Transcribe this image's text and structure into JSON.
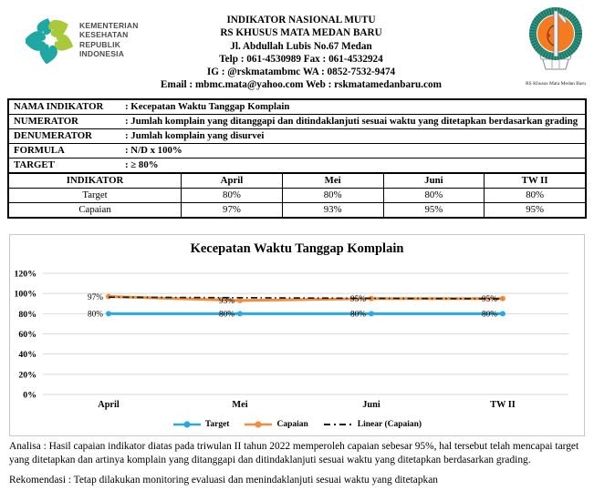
{
  "header": {
    "ministry_label_lines": [
      "KEMENTERIAN",
      "KESEHATAN",
      "REPUBLIK",
      "INDONESIA"
    ],
    "title_lines": [
      "INDIKATOR NASIONAL MUTU",
      "RS KHUSUS MATA MEDAN BARU",
      "Jl. Abdullah Lubis No.67 Medan",
      "Telp : 061-4530989  Fax : 061-4532924",
      "IG : @rskmatambmc  WA : 0852-7532-9474",
      "Email : mbmc.mata@yahoo.com  Web : rskmatamedanbaru.com"
    ],
    "hospital_logo_caption": "RS Khusus Mata  Medan Baru"
  },
  "info_table": {
    "rows": [
      {
        "label": "NAMA INDIKATOR",
        "value": ": Kecepatan Waktu Tanggap Komplain"
      },
      {
        "label": "NUMERATOR",
        "value": ": Jumlah komplain yang ditanggapi dan ditindaklanjuti sesuai waktu yang ditetapkan berdasarkan grading"
      },
      {
        "label": "DENUMERATOR",
        "value": ": Jumlah komplain yang disurvei"
      },
      {
        "label": "FORMULA",
        "value": ": N/D x 100%"
      },
      {
        "label": "TARGET",
        "value": ": ≥ 80%"
      }
    ]
  },
  "data_table": {
    "header": [
      "INDIKATOR",
      "April",
      "Mei",
      "Juni",
      "TW II"
    ],
    "rows": [
      {
        "name": "Target",
        "values": [
          "80%",
          "80%",
          "80%",
          "80%"
        ]
      },
      {
        "name": "Capaian",
        "values": [
          "97%",
          "93%",
          "95%",
          "95%"
        ]
      }
    ]
  },
  "chart_data": {
    "type": "line",
    "title": "Kecepatan Waktu Tanggap Komplain",
    "categories": [
      "April",
      "Mei",
      "Juni",
      "TW II"
    ],
    "series": [
      {
        "name": "Target",
        "values": [
          80,
          80,
          80,
          80
        ],
        "labels": [
          "80%",
          "80%",
          "80%",
          "80%"
        ],
        "color": "#29A9E1"
      },
      {
        "name": "Capaian",
        "values": [
          97,
          93,
          95,
          95
        ],
        "labels": [
          "97%",
          "93%",
          "95%",
          "95%"
        ],
        "color": "#F08E3F"
      }
    ],
    "trendline": {
      "name": "Linear (Capaian)",
      "values": [
        96.3,
        95.8,
        95.2,
        94.7
      ],
      "color": "#1a1a1a",
      "style": "dash-dot"
    },
    "y_ticks": [
      "120%",
      "100%",
      "80%",
      "60%",
      "40%",
      "20%",
      "0%"
    ],
    "ylim": [
      0,
      120
    ],
    "grid": true,
    "legend_position": "bottom"
  },
  "analysis": {
    "analisa": "Analisa : Hasil capaian indikator diatas pada triwulan II tahun 2022 memperoleh capaian sebesar 95%, hal tersebut telah mencapai target yang ditetapkan dan artinya komplain yang ditanggapi dan ditindaklanjuti sesuai waktu yang ditetapkan berdasarkan grading.",
    "rekomendasi": "Rekomendasi : Tetap dilakukan monitoring evaluasi dan menindaklanjuti sesuai waktu yang ditetapkan"
  },
  "colors": {
    "grid": "#d9d9d9",
    "logo_teal": "#1FA8A3",
    "logo_lime": "#A9C93A",
    "hospital_ring": "#2F9682",
    "hospital_inner": "#F47B20"
  }
}
